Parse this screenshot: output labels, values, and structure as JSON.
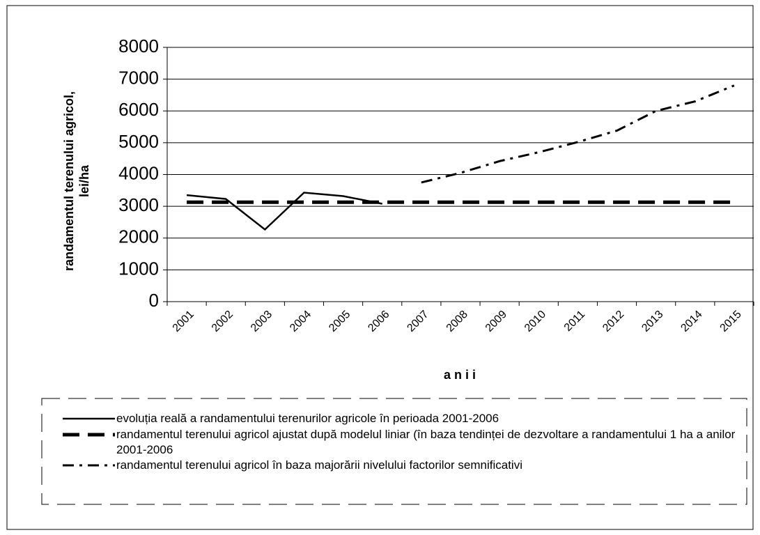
{
  "chart_data": {
    "type": "line",
    "ylabel": "randamentul terenului agricol, lei/ha",
    "xlabel": "a n i i",
    "categories": [
      "2001",
      "2002",
      "2003",
      "2004",
      "2005",
      "2006",
      "2007",
      "2008",
      "2009",
      "2010",
      "2011",
      "2012",
      "2013",
      "2014",
      "2015"
    ],
    "series": [
      {
        "name": "evoluția reală a randamentului terenurilor agricole în perioada 2001-2006",
        "color": "#000000",
        "style": "solid",
        "values": [
          3350,
          3230,
          2270,
          3430,
          3320,
          3080,
          null,
          null,
          null,
          null,
          null,
          null,
          null,
          null,
          null
        ]
      },
      {
        "name": "randamentul terenului agricol ajustat după modelul liniar (în baza tendinței de dezvoltare a randamentului 1 ha a anilor 2001-2006",
        "color": "#000000",
        "style": "dashed",
        "values": [
          3130,
          3130,
          3130,
          3130,
          3130,
          3130,
          3130,
          3130,
          3130,
          3130,
          3130,
          3130,
          3130,
          3130,
          3130
        ]
      },
      {
        "name": "randamentul terenului agricol în baza majorării nivelului factorilor semnificativi",
        "color": "#000000",
        "style": "dashdot",
        "values": [
          null,
          null,
          null,
          null,
          null,
          null,
          3750,
          4050,
          4420,
          4700,
          5020,
          5380,
          6000,
          6300,
          6800
        ]
      }
    ],
    "ylim": [
      0,
      8000
    ],
    "yticks": [
      0,
      1000,
      2000,
      3000,
      4000,
      5000,
      6000,
      7000,
      8000
    ],
    "grid": true
  }
}
